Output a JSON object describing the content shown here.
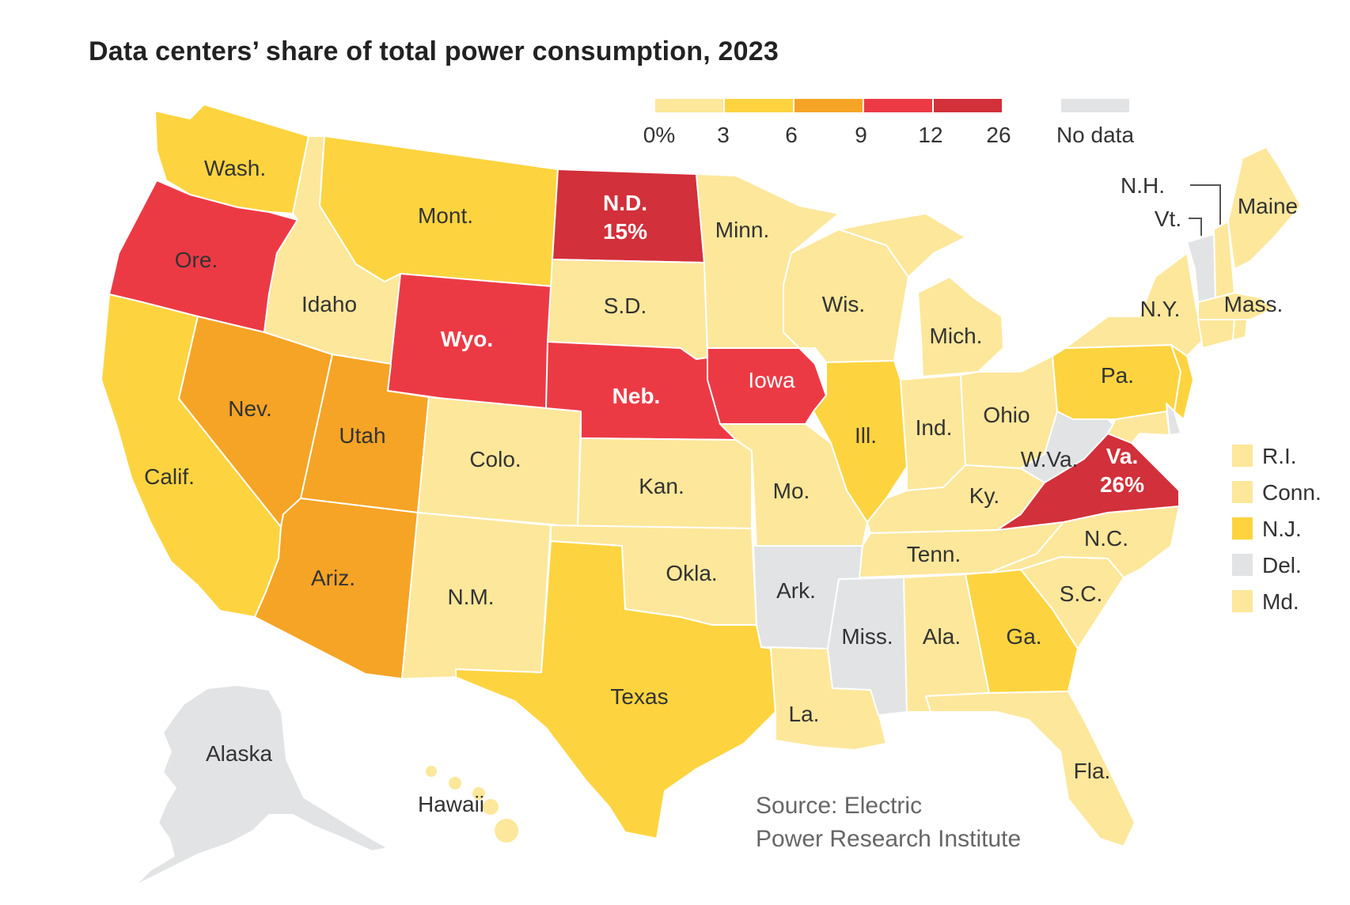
{
  "title": "Data centers’ share of total power consumption, 2023",
  "colors": {
    "c0": "#fde79a",
    "c3": "#fdd43f",
    "c6": "#f6a425",
    "c9": "#ec3a45",
    "c12": "#d2303a",
    "nodata": "#e2e3e5"
  },
  "legend": {
    "ticks": [
      "0%",
      "3",
      "6",
      "9",
      "12",
      "26"
    ],
    "no_data_label": "No data"
  },
  "states": {
    "wash": "Wash.",
    "ore": "Ore.",
    "calif": "Calif.",
    "idaho": "Idaho",
    "nev": "Nev.",
    "mont": "Mont.",
    "wyo": "Wyo.",
    "utah": "Utah",
    "ariz": "Ariz.",
    "colo": "Colo.",
    "nm": "N.M.",
    "nd": "N.D.",
    "nd_value": "15%",
    "sd": "S.D.",
    "neb": "Neb.",
    "kan": "Kan.",
    "okla": "Okla.",
    "texas": "Texas",
    "minn": "Minn.",
    "iowa": "Iowa",
    "mo": "Mo.",
    "ark": "Ark.",
    "la": "La.",
    "wis": "Wis.",
    "ill": "Ill.",
    "mich": "Mich.",
    "ind": "Ind.",
    "ohio": "Ohio",
    "ky": "Ky.",
    "tenn": "Tenn.",
    "miss": "Miss.",
    "ala": "Ala.",
    "ga": "Ga.",
    "fla": "Fla.",
    "sc": "S.C.",
    "nc": "N.C.",
    "va": "Va.",
    "va_value": "26%",
    "wva": "W.Va.",
    "pa": "Pa.",
    "ny": "N.Y.",
    "maine": "Maine",
    "mass": "Mass.",
    "nh": "N.H.",
    "vt": "Vt.",
    "alaska": "Alaska",
    "hawaii": "Hawaii"
  },
  "small_states": [
    {
      "name": "R.I.",
      "value": "0-3"
    },
    {
      "name": "Conn.",
      "value": "0-3"
    },
    {
      "name": "N.J.",
      "value": "3-6"
    },
    {
      "name": "Del.",
      "value": "No data"
    },
    {
      "name": "Md.",
      "value": "0-3"
    }
  ],
  "source": {
    "line1": "Source: Electric",
    "line2": "Power Research Institute"
  }
}
